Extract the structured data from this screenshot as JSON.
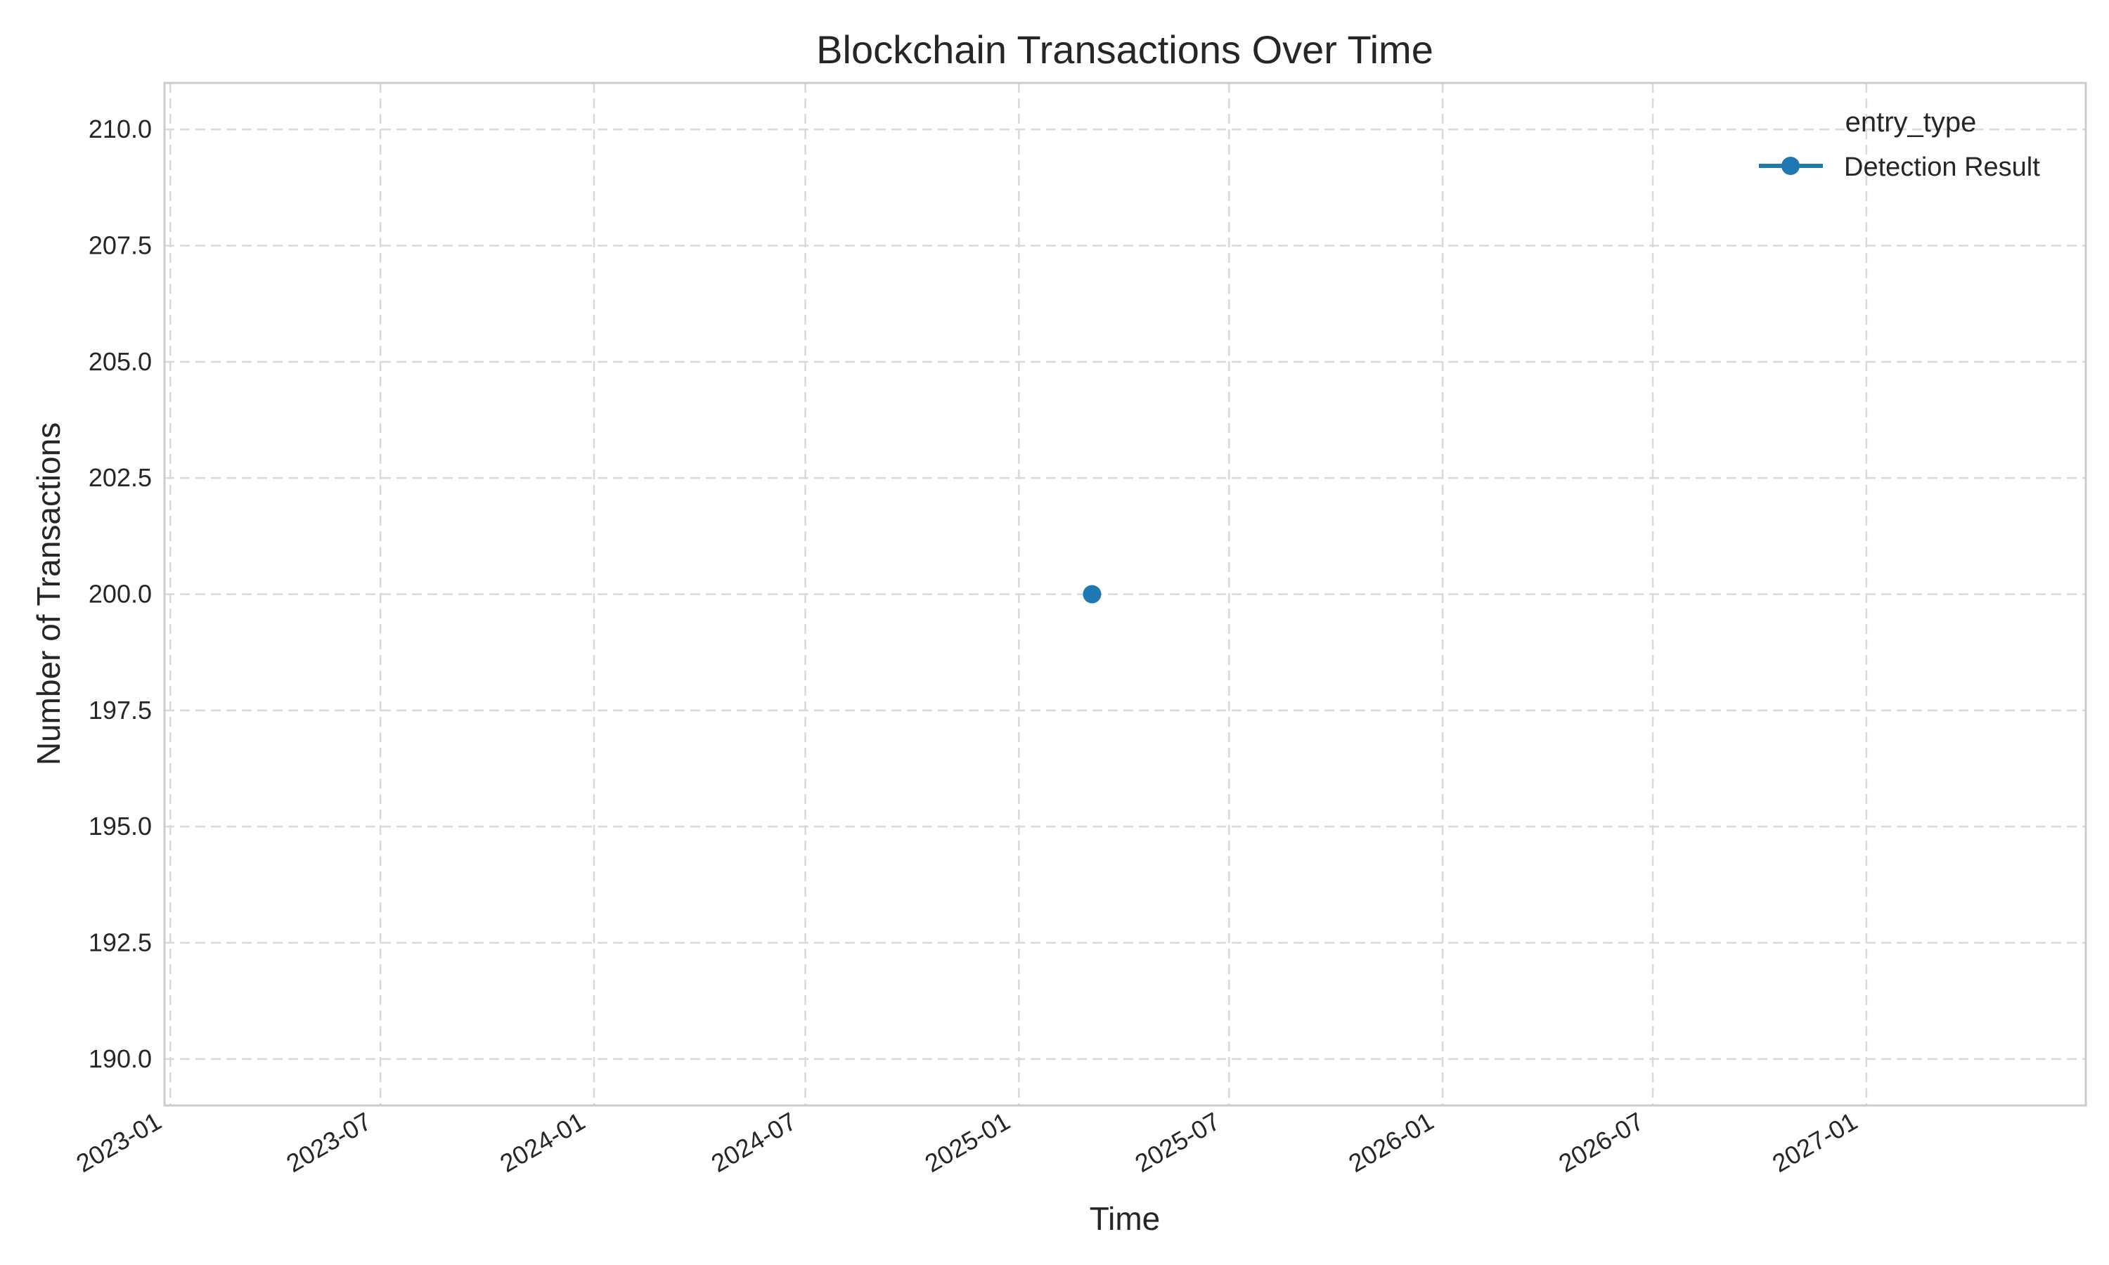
{
  "chart_data": {
    "type": "line",
    "title": "Blockchain Transactions Over Time",
    "xlabel": "Time",
    "ylabel": "Number of Transactions",
    "x_ticks": [
      "2023-01",
      "2023-07",
      "2024-01",
      "2024-07",
      "2025-01",
      "2025-07",
      "2026-01",
      "2026-07",
      "2027-01"
    ],
    "x_range": [
      "2022-12-27",
      "2027-07-09"
    ],
    "y_ticks": [
      "190.0",
      "192.5",
      "195.0",
      "197.5",
      "200.0",
      "202.5",
      "205.0",
      "207.5",
      "210.0"
    ],
    "ylim": [
      189.0,
      211.0
    ],
    "grid": true,
    "legend": {
      "title": "entry_type",
      "position": "top-right"
    },
    "series": [
      {
        "name": "Detection Result",
        "color": "#1f77b4",
        "points": [
          {
            "x": "2025-03-05",
            "y": 200
          }
        ]
      }
    ]
  }
}
